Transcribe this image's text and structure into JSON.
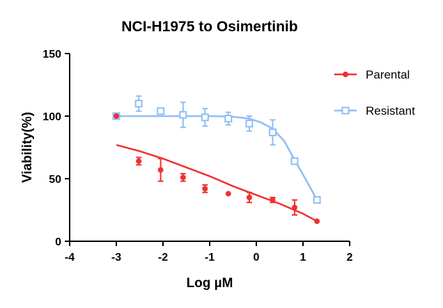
{
  "chart_data": {
    "type": "scatter",
    "title": "NCI-H1975 to Osimertinib",
    "xlabel": "Log µM",
    "ylabel": "Viability(%)",
    "xlim": [
      -4,
      2
    ],
    "ylim": [
      0,
      150
    ],
    "xticks": [
      -4,
      -3,
      -2,
      -1,
      0,
      1,
      2
    ],
    "yticks": [
      0,
      50,
      100,
      150
    ],
    "grid": false,
    "legend_position": "right",
    "series": [
      {
        "name": "Parental",
        "color": "#f03030",
        "marker": "filled-circle",
        "x": [
          -3,
          -2.52,
          -2.05,
          -1.57,
          -1.1,
          -0.6,
          -0.15,
          0.35,
          0.82,
          1.3
        ],
        "y": [
          100,
          64,
          57,
          51,
          42,
          38,
          35,
          33,
          27,
          16
        ],
        "err": [
          0,
          3,
          9,
          3,
          3,
          0,
          4,
          2,
          6,
          0
        ],
        "fit_x": [
          -3,
          -2.5,
          -2,
          -1.5,
          -1,
          -0.5,
          0,
          0.5,
          1,
          1.3
        ],
        "fit_y": [
          77,
          72,
          66,
          59,
          52,
          44,
          37,
          30,
          22,
          16
        ]
      },
      {
        "name": "Resistant",
        "color": "#8fbdf5",
        "marker": "open-square",
        "x": [
          -3,
          -2.52,
          -2.05,
          -1.57,
          -1.1,
          -0.6,
          -0.15,
          0.35,
          0.82,
          1.3
        ],
        "y": [
          100,
          110,
          104,
          101,
          99,
          98,
          94,
          87,
          64,
          33
        ],
        "err": [
          0,
          6,
          2,
          10,
          7,
          5,
          6,
          10,
          0,
          0
        ],
        "fit_x": [
          -3,
          -2,
          -1,
          -0.5,
          -0.15,
          0.1,
          0.35,
          0.6,
          0.82,
          1.05,
          1.3
        ],
        "fit_y": [
          100,
          100,
          100,
          99.5,
          98,
          95,
          90,
          80,
          65,
          50,
          33
        ]
      }
    ]
  }
}
